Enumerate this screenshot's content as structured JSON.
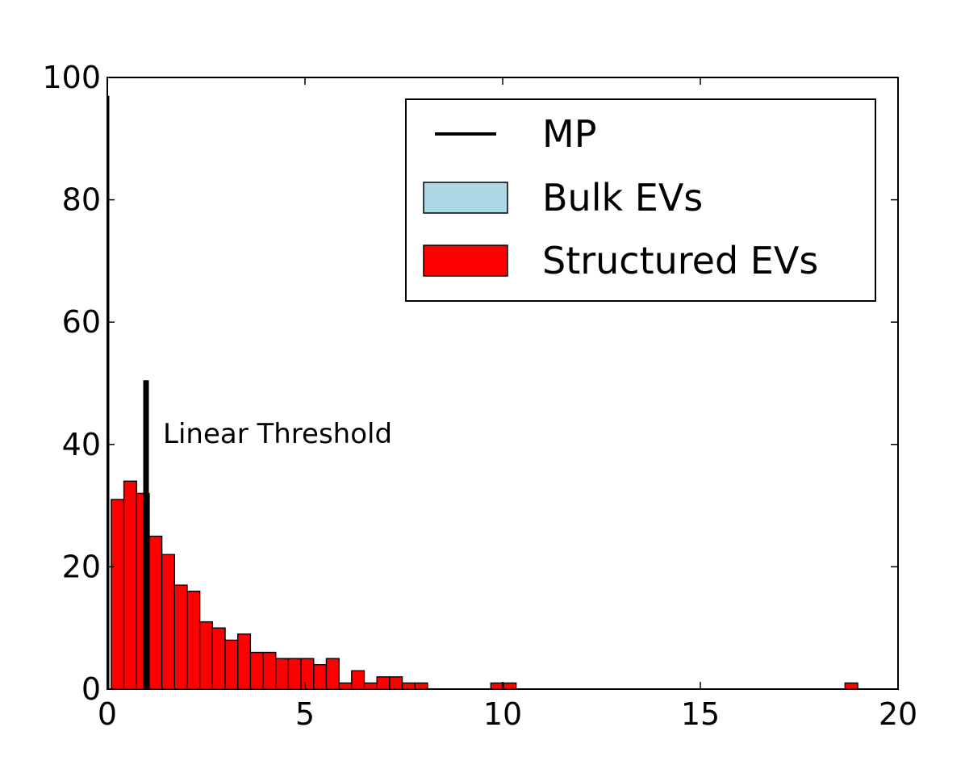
{
  "chart_data": {
    "type": "bar",
    "title": "",
    "xlabel": "",
    "ylabel": "",
    "xlim": [
      0,
      20
    ],
    "ylim": [
      0,
      100
    ],
    "grid": false,
    "x_ticks": [
      "0",
      "5",
      "10",
      "15",
      "20"
    ],
    "y_ticks": [
      "0",
      "20",
      "40",
      "60",
      "80",
      "100"
    ],
    "legend": {
      "placement": "top-right",
      "entries": [
        {
          "label": "MP",
          "kind": "line",
          "color": "#000000"
        },
        {
          "label": "Bulk EVs",
          "kind": "patch",
          "color": "#add8e6"
        },
        {
          "label": "Structured EVs",
          "kind": "patch",
          "color": "#ff0000"
        }
      ]
    },
    "series": [
      {
        "name": "MP",
        "type": "line",
        "color": "#000000",
        "points": [
          [
            0.02,
            97
          ],
          [
            0.02,
            0
          ]
        ]
      },
      {
        "name": "Structured EVs",
        "type": "histogram",
        "color": "#ff0000",
        "bin_width": 0.32,
        "bins": [
          {
            "x": 0.1,
            "count": 31
          },
          {
            "x": 0.42,
            "count": 34
          },
          {
            "x": 0.74,
            "count": 32
          },
          {
            "x": 1.06,
            "count": 25
          },
          {
            "x": 1.38,
            "count": 22
          },
          {
            "x": 1.7,
            "count": 17
          },
          {
            "x": 2.02,
            "count": 16
          },
          {
            "x": 2.34,
            "count": 11
          },
          {
            "x": 2.66,
            "count": 10
          },
          {
            "x": 2.98,
            "count": 8
          },
          {
            "x": 3.3,
            "count": 9
          },
          {
            "x": 3.62,
            "count": 6
          },
          {
            "x": 3.94,
            "count": 6
          },
          {
            "x": 4.26,
            "count": 5
          },
          {
            "x": 4.58,
            "count": 5
          },
          {
            "x": 4.9,
            "count": 5
          },
          {
            "x": 5.22,
            "count": 4
          },
          {
            "x": 5.54,
            "count": 5
          },
          {
            "x": 5.86,
            "count": 1
          },
          {
            "x": 6.18,
            "count": 3
          },
          {
            "x": 6.5,
            "count": 1
          },
          {
            "x": 6.82,
            "count": 2
          },
          {
            "x": 7.14,
            "count": 2
          },
          {
            "x": 7.46,
            "count": 1
          },
          {
            "x": 7.78,
            "count": 1
          },
          {
            "x": 9.7,
            "count": 1
          },
          {
            "x": 10.02,
            "count": 1
          },
          {
            "x": 18.66,
            "count": 1
          }
        ]
      },
      {
        "name": "Bulk EVs",
        "type": "histogram",
        "color": "#add8e6",
        "bins": []
      }
    ],
    "threshold": {
      "label": "Linear Threshold",
      "x": 0.98,
      "y_top": 50.5,
      "color": "#000000"
    }
  }
}
